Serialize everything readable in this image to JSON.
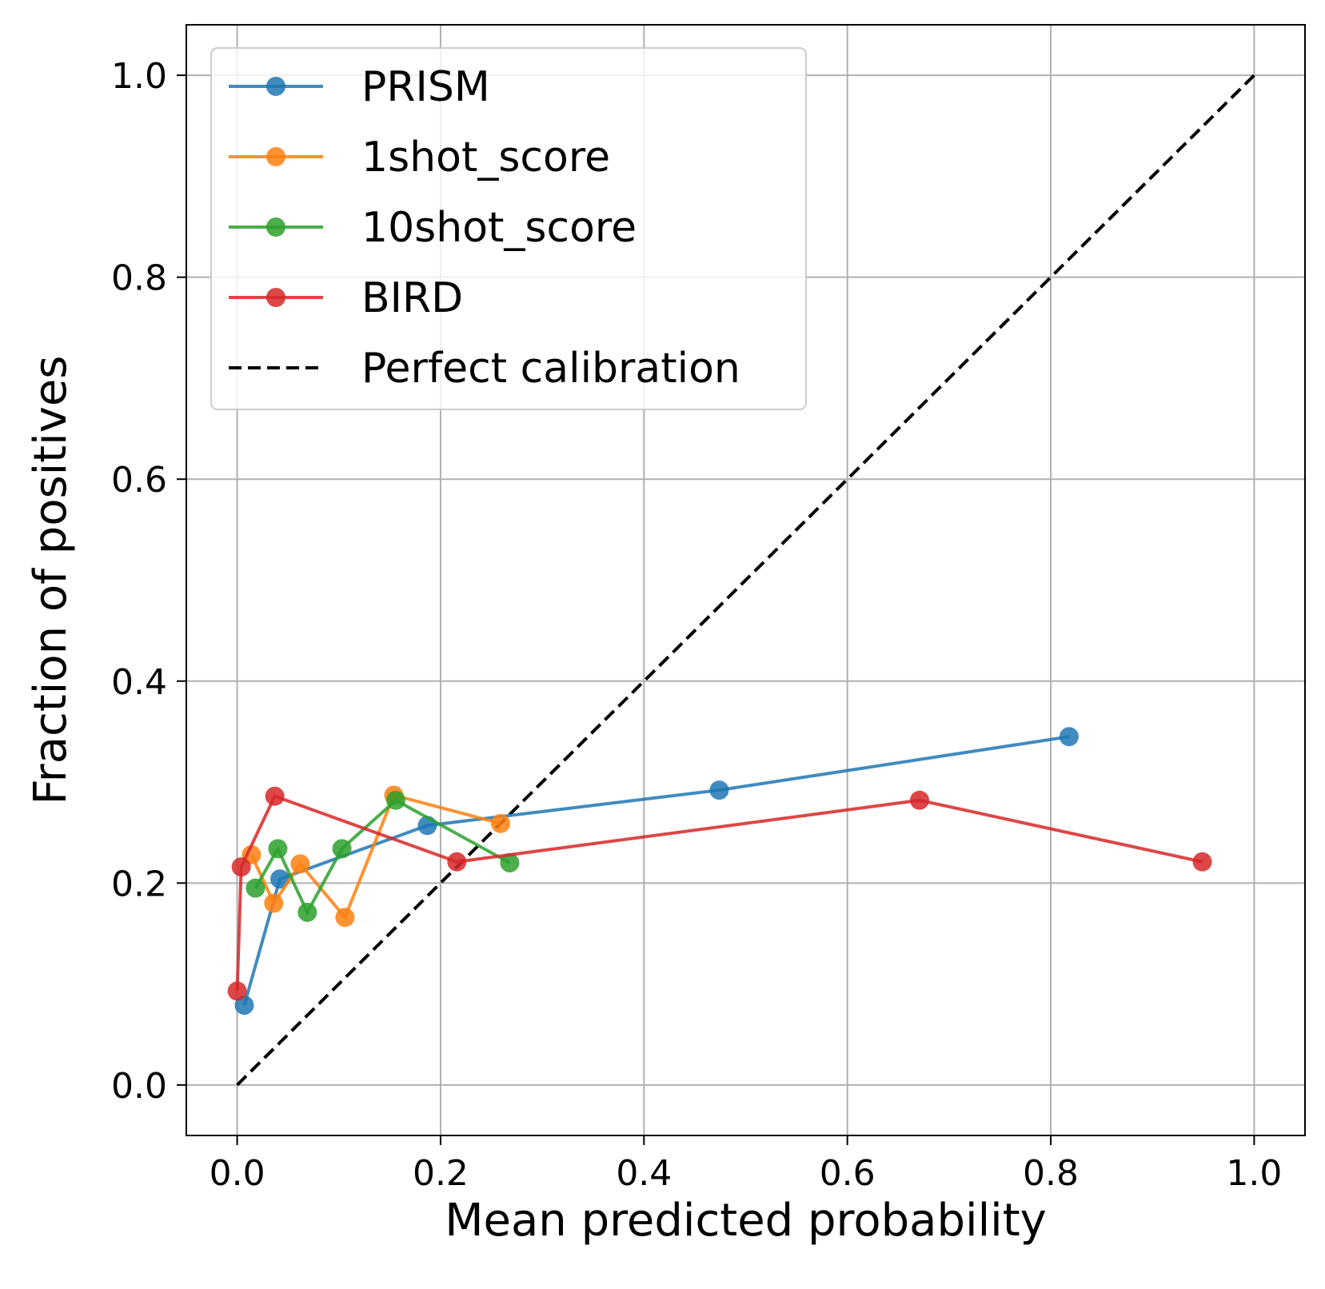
{
  "chart_data": {
    "type": "line",
    "title": "",
    "xlabel": "Mean predicted probability",
    "ylabel": "Fraction of positives",
    "xlim": [
      -0.05,
      1.05
    ],
    "ylim": [
      -0.05,
      1.05
    ],
    "xticks": [
      "0.0",
      "0.2",
      "0.4",
      "0.6",
      "0.8",
      "1.0"
    ],
    "yticks": [
      "0.0",
      "0.2",
      "0.4",
      "0.6",
      "0.8",
      "1.0"
    ],
    "xtick_values": [
      0,
      0.2,
      0.4,
      0.6,
      0.8,
      1.0
    ],
    "ytick_values": [
      0,
      0.2,
      0.4,
      0.6,
      0.8,
      1.0
    ],
    "grid": true,
    "legend_position": "top-left",
    "series": [
      {
        "name": "PRISM",
        "color": "#1f77b4",
        "x": [
          0.007,
          0.042,
          0.187,
          0.474,
          0.818
        ],
        "y": [
          0.079,
          0.204,
          0.257,
          0.292,
          0.345
        ]
      },
      {
        "name": "1shot_score",
        "color": "#ff7f0e",
        "x": [
          0.014,
          0.036,
          0.062,
          0.106,
          0.154,
          0.259
        ],
        "y": [
          0.228,
          0.18,
          0.219,
          0.166,
          0.287,
          0.259
        ]
      },
      {
        "name": "10shot_score",
        "color": "#2ca02c",
        "x": [
          0.018,
          0.04,
          0.069,
          0.103,
          0.156,
          0.268
        ],
        "y": [
          0.195,
          0.234,
          0.171,
          0.234,
          0.282,
          0.22
        ]
      },
      {
        "name": "BIRD",
        "color": "#d62728",
        "x": [
          0.0,
          0.004,
          0.037,
          0.216,
          0.671,
          0.949
        ],
        "y": [
          0.093,
          0.216,
          0.286,
          0.221,
          0.282,
          0.221
        ]
      }
    ],
    "reference_line": {
      "name": "Perfect calibration",
      "color": "#000000",
      "x": [
        0,
        1
      ],
      "y": [
        0,
        1
      ],
      "style": "dashed"
    }
  }
}
